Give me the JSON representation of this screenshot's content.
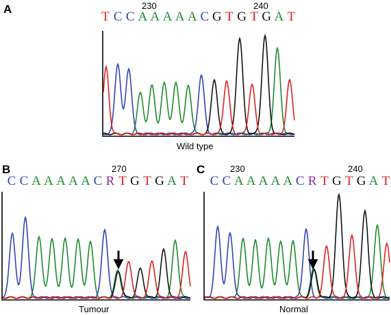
{
  "colors": {
    "A": "#1c8a2e",
    "C": "#3043b4",
    "G": "#111111",
    "T": "#e01e1e",
    "R": "#8a2fa0"
  },
  "panels": [
    {
      "letter": "A",
      "positions": [
        {
          "label": "230"
        },
        {
          "label": "240"
        }
      ],
      "sequence": "TCCAAAAACGTGTGAT",
      "caption": "Wild type"
    },
    {
      "letter": "B",
      "positions": [
        {
          "label": "270"
        }
      ],
      "sequence": "CCAAAAACRTGTGAT",
      "caption": "Tumour"
    },
    {
      "letter": "C",
      "positions": [
        {
          "label": "230"
        },
        {
          "label": "240"
        }
      ],
      "sequence": "CCAAAAACRTGTGAT",
      "caption": "Normal"
    }
  ]
}
